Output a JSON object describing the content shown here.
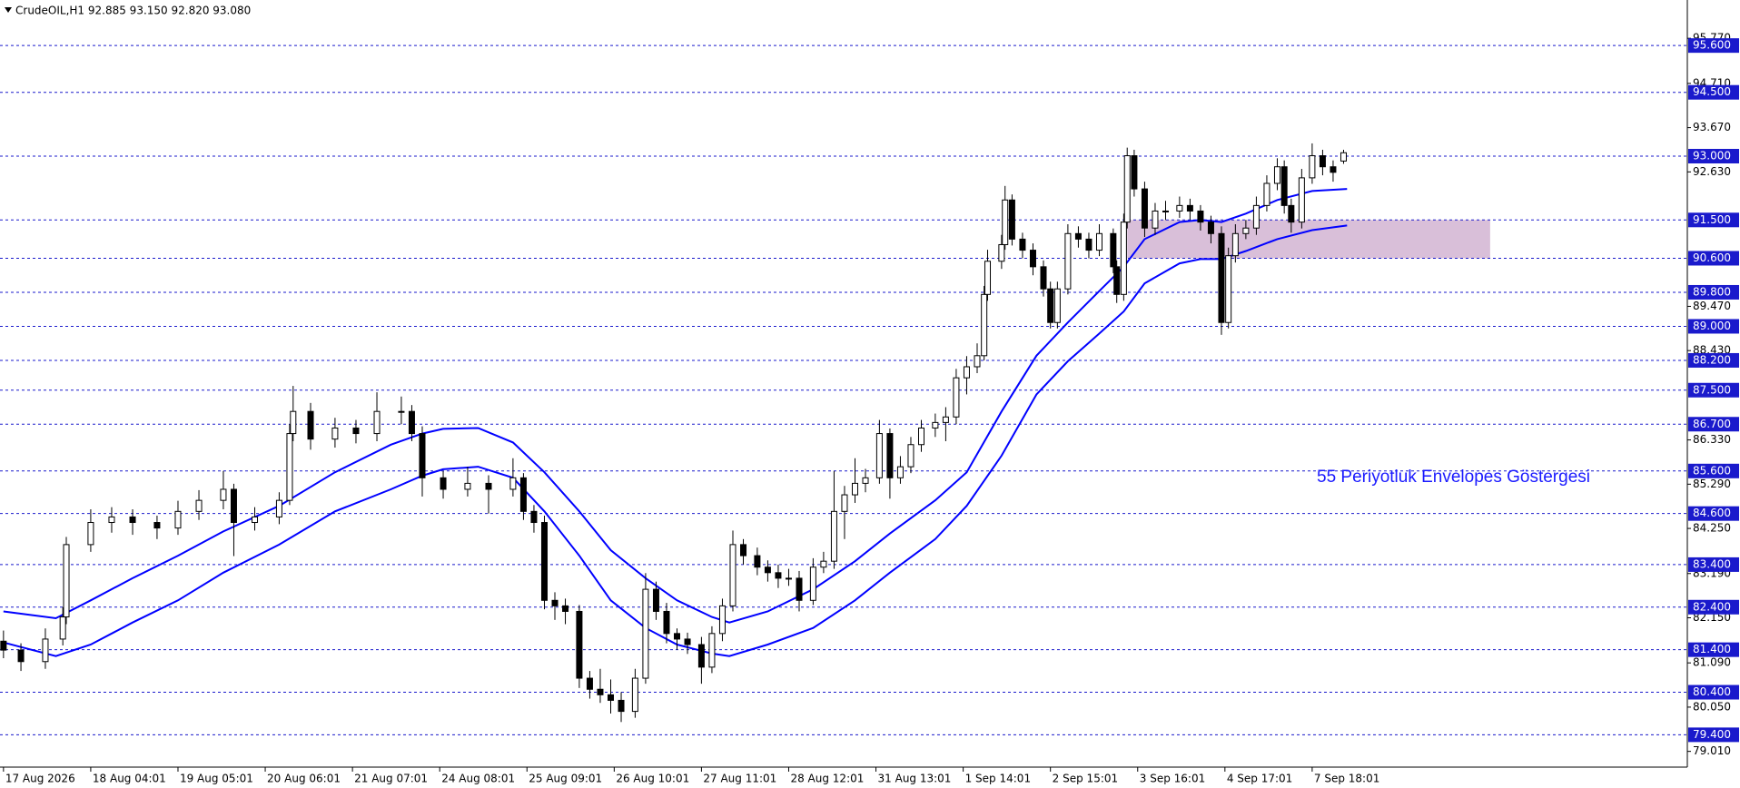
{
  "chart_data": {
    "type": "candlestick",
    "title": "CrudeOIL,H1  92.885 93.150 92.820 93.080",
    "annotation": "55 Periyotluk Envelopes Göstergesi",
    "xlim": [
      -1,
      482.5
    ],
    "ylim": [
      78.64,
      96.67
    ],
    "xticks": [
      {
        "value": 0,
        "label": "17 Aug 2026"
      },
      {
        "value": 25,
        "label": "18 Aug 04:01"
      },
      {
        "value": 50,
        "label": "19 Aug 05:01"
      },
      {
        "value": 75,
        "label": "20 Aug 06:01"
      },
      {
        "value": 100,
        "label": "21 Aug 07:01"
      },
      {
        "value": 125,
        "label": "24 Aug 08:01"
      },
      {
        "value": 150,
        "label": "25 Aug 09:01"
      },
      {
        "value": 175,
        "label": "26 Aug 10:01"
      },
      {
        "value": 200,
        "label": "27 Aug 11:01"
      },
      {
        "value": 225,
        "label": "28 Aug 12:01"
      },
      {
        "value": 250,
        "label": "31 Aug 13:01"
      },
      {
        "value": 275,
        "label": "1 Sep 14:01"
      },
      {
        "value": 300,
        "label": "2 Sep 15:01"
      },
      {
        "value": 325,
        "label": "3 Sep 16:01"
      },
      {
        "value": 350,
        "label": "4 Sep 17:01"
      },
      {
        "value": 375,
        "label": "7 Sep 18:01"
      }
    ],
    "yticks": [
      {
        "value": 95.77,
        "label": "95.770"
      },
      {
        "value": 94.71,
        "label": "94.710"
      },
      {
        "value": 93.67,
        "label": "93.670"
      },
      {
        "value": 92.63,
        "label": "92.630"
      },
      {
        "value": 89.47,
        "label": "89.470"
      },
      {
        "value": 88.43,
        "label": "88.430"
      },
      {
        "value": 86.33,
        "label": "86.330"
      },
      {
        "value": 85.29,
        "label": "85.290"
      },
      {
        "value": 84.25,
        "label": "84.250"
      },
      {
        "value": 83.19,
        "label": "83.190"
      },
      {
        "value": 82.15,
        "label": "82.150"
      },
      {
        "value": 81.09,
        "label": "81.090"
      },
      {
        "value": 80.05,
        "label": "80.050"
      },
      {
        "value": 79.01,
        "label": "79.010"
      }
    ],
    "levels": {
      "color": "#1a1acc",
      "items": [
        {
          "value": 95.6,
          "label": "95.600"
        },
        {
          "value": 94.5,
          "label": "94.500"
        },
        {
          "value": 93,
          "label": "93.000"
        },
        {
          "value": 91.5,
          "label": "91.500"
        },
        {
          "value": 90.6,
          "label": "90.600"
        },
        {
          "value": 89.8,
          "label": "89.800"
        },
        {
          "value": 89,
          "label": "89.000"
        },
        {
          "value": 88.2,
          "label": "88.200"
        },
        {
          "value": 87.5,
          "label": "87.500"
        },
        {
          "value": 86.7,
          "label": "86.700"
        },
        {
          "value": 85.6,
          "label": "85.600"
        },
        {
          "value": 84.6,
          "label": "84.600"
        },
        {
          "value": 83.4,
          "label": "83.400"
        },
        {
          "value": 82.4,
          "label": "82.400"
        },
        {
          "value": 81.4,
          "label": "81.400"
        },
        {
          "value": 80.4,
          "label": "80.400"
        },
        {
          "value": 79.4,
          "label": "79.400"
        }
      ]
    },
    "zone": {
      "color": "#d9bfd9",
      "x": [
        322,
        426
      ],
      "y": [
        90.6,
        91.5
      ]
    },
    "up_color": "#ffffff",
    "down_color": "#000000",
    "x": [
      0,
      5,
      12,
      17,
      18,
      25,
      31,
      37,
      44,
      50,
      56,
      63,
      66,
      72,
      79,
      82,
      83,
      88,
      95,
      101,
      107,
      114,
      117,
      120,
      126,
      133,
      139,
      146,
      149,
      152,
      155,
      158,
      161,
      165,
      168,
      171,
      174,
      177,
      181,
      184,
      187,
      190,
      193,
      196,
      200,
      203,
      206,
      209,
      212,
      216,
      219,
      222,
      225,
      228,
      232,
      235,
      238,
      241,
      244,
      247,
      251,
      254,
      257,
      260,
      263,
      267,
      270,
      273,
      276,
      279,
      281,
      282,
      286,
      287,
      289,
      292,
      295,
      298,
      300,
      302,
      305,
      308,
      311,
      314,
      318,
      319,
      321,
      322,
      324,
      327,
      330,
      333,
      337,
      340,
      343,
      346,
      349,
      351,
      353,
      356,
      359,
      362,
      365,
      367,
      369,
      372,
      375,
      378,
      381,
      384
    ],
    "open": [
      81.6,
      81.39,
      81.12,
      81.65,
      82.17,
      83.87,
      84.39,
      84.52,
      84.39,
      84.26,
      84.65,
      84.91,
      85.17,
      84.39,
      84.52,
      84.91,
      86.48,
      87,
      86.35,
      86.61,
      86.48,
      87,
      87,
      86.48,
      85.44,
      85.17,
      85.31,
      85.17,
      85.44,
      84.65,
      84.39,
      82.56,
      82.43,
      82.3,
      80.73,
      80.47,
      80.34,
      80.21,
      79.95,
      80.73,
      82.82,
      82.3,
      81.78,
      81.65,
      81.52,
      80.99,
      81.78,
      82.43,
      83.87,
      83.61,
      83.34,
      83.21,
      83.08,
      83.08,
      82.56,
      83.34,
      83.48,
      84.65,
      85.04,
      85.31,
      85.44,
      86.48,
      85.44,
      85.7,
      86.22,
      86.61,
      86.74,
      86.87,
      87.79,
      88.05,
      88.31,
      89.75,
      90.53,
      90.92,
      91.97,
      91.05,
      90.79,
      90.4,
      89.88,
      89.09,
      89.88,
      91.18,
      91.05,
      90.79,
      91.18,
      90.4,
      89.75,
      91.45,
      93.01,
      92.23,
      91.31,
      91.71,
      91.71,
      91.84,
      91.71,
      91.45,
      91.18,
      89.09,
      90.66,
      91.18,
      91.31,
      91.84,
      92.36,
      92.75,
      91.84,
      91.45,
      92.49,
      93.01,
      92.75,
      92.885
    ],
    "high": [
      81.85,
      81.55,
      81.9,
      82.4,
      84.05,
      84.7,
      84.75,
      84.7,
      84.55,
      84.9,
      85.15,
      85.6,
      85.3,
      84.75,
      85.1,
      86.7,
      87.6,
      87.2,
      86.85,
      86.8,
      87.45,
      87.35,
      87.15,
      86.65,
      85.6,
      85.7,
      85.5,
      85.9,
      85.55,
      84.8,
      84.55,
      82.75,
      82.6,
      82.45,
      80.9,
      80.95,
      80.7,
      80.4,
      80.95,
      83.2,
      83,
      82.5,
      81.9,
      81.8,
      81.7,
      81.95,
      82.6,
      84.2,
      84,
      83.8,
      83.5,
      83.4,
      83.3,
      83.25,
      83.55,
      83.7,
      85.6,
      85.25,
      85.9,
      85.65,
      86.8,
      86.6,
      85.95,
      86.4,
      86.8,
      86.95,
      87.1,
      88,
      88.3,
      88.6,
      89.95,
      90.8,
      91.15,
      92.3,
      92.1,
      91.2,
      90.95,
      90.55,
      90.05,
      90.05,
      91.4,
      91.35,
      91.2,
      91.4,
      91.3,
      90.55,
      91.65,
      93.2,
      93.15,
      92.4,
      91.9,
      91.95,
      92.05,
      92,
      91.85,
      91.6,
      91.35,
      90.85,
      91.4,
      91.5,
      92.05,
      92.55,
      92.95,
      92.9,
      92,
      92.7,
      93.3,
      93.15,
      92.9,
      93.15
    ],
    "low": [
      81.2,
      80.9,
      80.95,
      81.5,
      82,
      83.7,
      84.15,
      84.1,
      84,
      84.1,
      84.45,
      84.7,
      83.6,
      84.2,
      84.35,
      84.8,
      86.3,
      86.1,
      86.15,
      86.25,
      86.3,
      86.7,
      86.3,
      85,
      84.95,
      85,
      84.6,
      85,
      84.45,
      84.15,
      82.35,
      82.1,
      82,
      80.5,
      80.25,
      80.15,
      79.9,
      79.7,
      79.8,
      80.6,
      82.1,
      81.55,
      81.4,
      81.3,
      80.6,
      80.85,
      81.6,
      82.3,
      83.4,
      83.15,
      83,
      82.85,
      82.9,
      82.3,
      82.45,
      83.2,
      83.3,
      84,
      84.85,
      85.1,
      85.3,
      84.95,
      85.3,
      85.55,
      86.05,
      86.4,
      86.3,
      86.7,
      87.4,
      87.9,
      88.2,
      89.6,
      90.35,
      90.8,
      90.9,
      90.6,
      90.2,
      89.7,
      88.95,
      88.95,
      89.75,
      90.85,
      90.6,
      90.65,
      90.25,
      89.55,
      89.6,
      91.3,
      92.05,
      91.1,
      91.15,
      91.5,
      91.55,
      91.5,
      91.25,
      90.95,
      88.8,
      88.95,
      90.5,
      91.05,
      91.15,
      91.7,
      92.2,
      91.65,
      91.2,
      91.3,
      92.35,
      92.55,
      92.4,
      92.82
    ],
    "close": [
      81.39,
      81.12,
      81.65,
      82.17,
      83.87,
      84.39,
      84.52,
      84.39,
      84.26,
      84.65,
      84.91,
      85.17,
      84.39,
      84.52,
      84.91,
      86.48,
      87,
      86.35,
      86.61,
      86.48,
      87,
      87,
      86.48,
      85.44,
      85.17,
      85.31,
      85.17,
      85.44,
      84.65,
      84.39,
      82.56,
      82.43,
      82.3,
      80.73,
      80.47,
      80.34,
      80.21,
      79.95,
      80.73,
      82.82,
      82.3,
      81.78,
      81.65,
      81.52,
      80.99,
      81.78,
      82.43,
      83.87,
      83.61,
      83.34,
      83.21,
      83.08,
      83.08,
      82.56,
      83.34,
      83.48,
      84.65,
      85.04,
      85.31,
      85.44,
      86.48,
      85.44,
      85.7,
      86.22,
      86.61,
      86.74,
      86.87,
      87.79,
      88.05,
      88.31,
      89.75,
      90.53,
      90.92,
      91.97,
      91.05,
      90.79,
      90.4,
      89.88,
      89.09,
      89.88,
      91.18,
      91.05,
      90.79,
      91.18,
      90.4,
      89.75,
      91.45,
      93.01,
      92.23,
      91.31,
      91.71,
      91.71,
      91.84,
      91.71,
      91.45,
      91.18,
      89.09,
      90.66,
      91.18,
      91.31,
      91.84,
      92.36,
      92.75,
      91.84,
      91.45,
      92.49,
      93.01,
      92.75,
      92.62,
      93.08
    ],
    "envelopes": [
      {
        "color": "#0000ff",
        "x": [
          0,
          15,
          25,
          37,
          50,
          63,
          79,
          95,
          111,
          120,
          126,
          136,
          146,
          155,
          165,
          174,
          184,
          193,
          203,
          208,
          219,
          232,
          244,
          254,
          267,
          276,
          286,
          296,
          305,
          314,
          321,
          327,
          337,
          343,
          349,
          356,
          365,
          375,
          385
        ],
        "values": [
          82.3,
          82.14,
          82.56,
          83.08,
          83.61,
          84.18,
          84.78,
          85.57,
          86.22,
          86.48,
          86.59,
          86.61,
          86.27,
          85.57,
          84.65,
          83.74,
          83.08,
          82.56,
          82.17,
          82.04,
          82.3,
          82.82,
          83.48,
          84.13,
          84.91,
          85.57,
          87,
          88.31,
          89.09,
          89.83,
          90.4,
          91.05,
          91.45,
          91.5,
          91.45,
          91.65,
          91.97,
          92.18,
          92.23
        ]
      },
      {
        "color": "#0000ff",
        "x": [
          0,
          15,
          25,
          37,
          50,
          63,
          79,
          95,
          111,
          120,
          126,
          136,
          146,
          155,
          165,
          174,
          184,
          193,
          203,
          208,
          219,
          232,
          244,
          254,
          267,
          276,
          286,
          296,
          305,
          314,
          321,
          327,
          337,
          343,
          349,
          356,
          365,
          375,
          385
        ],
        "values": [
          81.57,
          81.25,
          81.52,
          82.04,
          82.56,
          83.21,
          83.87,
          84.65,
          85.17,
          85.49,
          85.64,
          85.7,
          85.44,
          84.65,
          83.61,
          82.56,
          81.91,
          81.52,
          81.31,
          81.25,
          81.52,
          81.91,
          82.56,
          83.21,
          84,
          84.78,
          85.96,
          87.4,
          88.18,
          88.83,
          89.35,
          90.01,
          90.48,
          90.58,
          90.58,
          90.77,
          91.05,
          91.26,
          91.37
        ]
      }
    ]
  }
}
